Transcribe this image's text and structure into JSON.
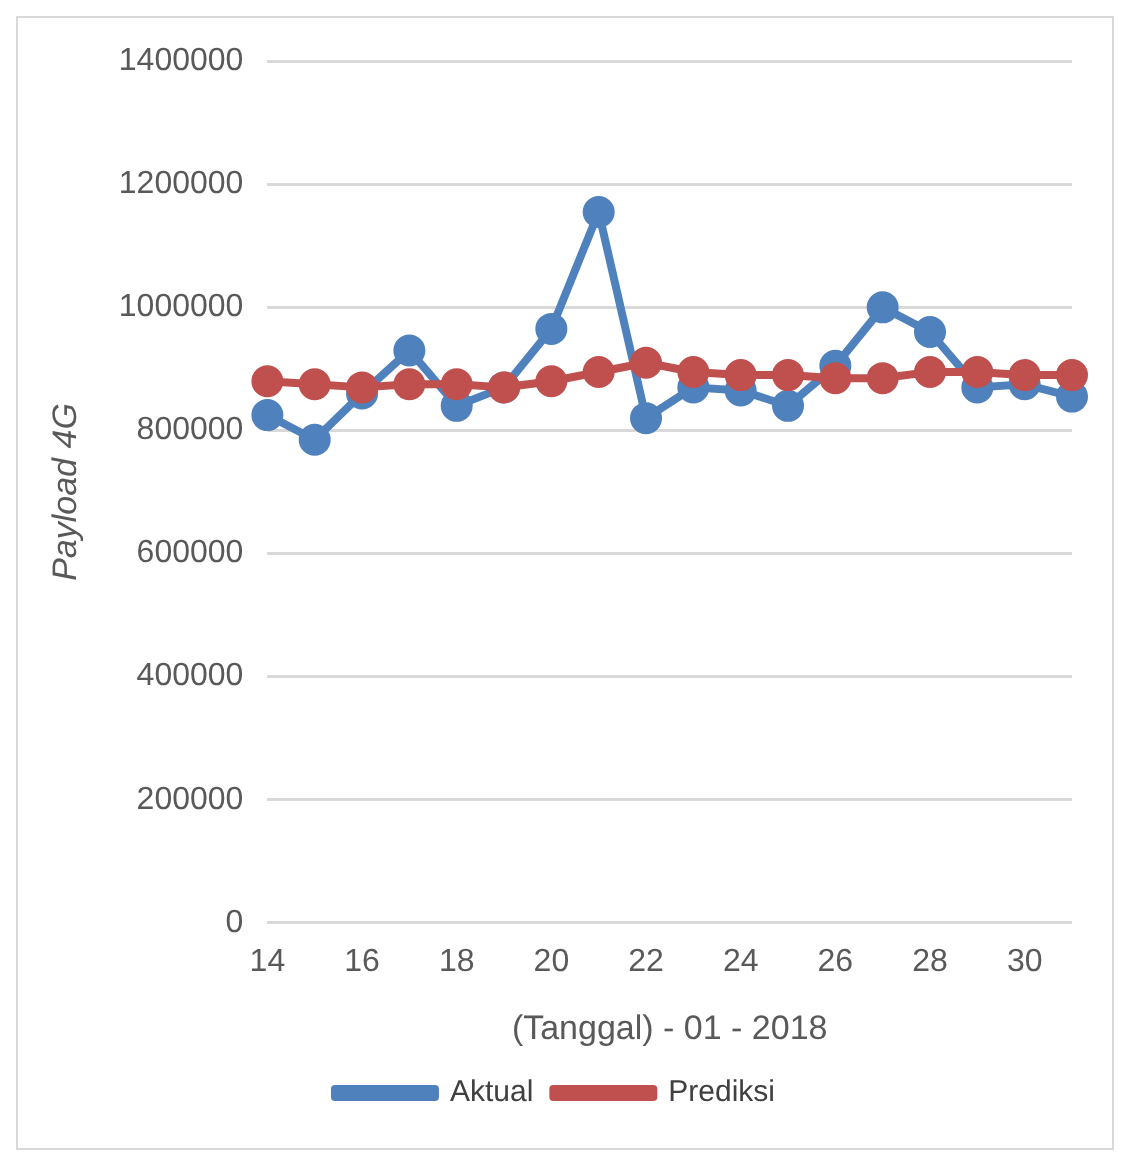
{
  "chart_data": {
    "type": "line",
    "xlabel": "(Tanggal) - 01 - 2018",
    "ylabel": "Payload 4G",
    "categories": [
      "14",
      null,
      "16",
      null,
      "18",
      null,
      "20",
      null,
      "22",
      null,
      "24",
      null,
      "26",
      null,
      "28",
      null,
      "30",
      null
    ],
    "series": [
      {
        "name": "Aktual",
        "color": "#4f81bd",
        "values": [
          825000,
          785000,
          860000,
          930000,
          840000,
          870000,
          965000,
          1155000,
          820000,
          870000,
          865000,
          840000,
          905000,
          1000000,
          960000,
          870000,
          875000,
          855000
        ]
      },
      {
        "name": "Prediksi",
        "color": "#c0504d",
        "values": [
          880000,
          875000,
          870000,
          875000,
          875000,
          870000,
          880000,
          895000,
          910000,
          895000,
          890000,
          890000,
          885000,
          885000,
          895000,
          895000,
          890000,
          890000
        ]
      }
    ],
    "ylim": [
      0,
      1400000
    ],
    "yticks": [
      0,
      200000,
      400000,
      600000,
      800000,
      1000000,
      1200000,
      1400000
    ],
    "grid": "y",
    "legend": "bottom",
    "marker": "circle",
    "line_style": "solid"
  }
}
